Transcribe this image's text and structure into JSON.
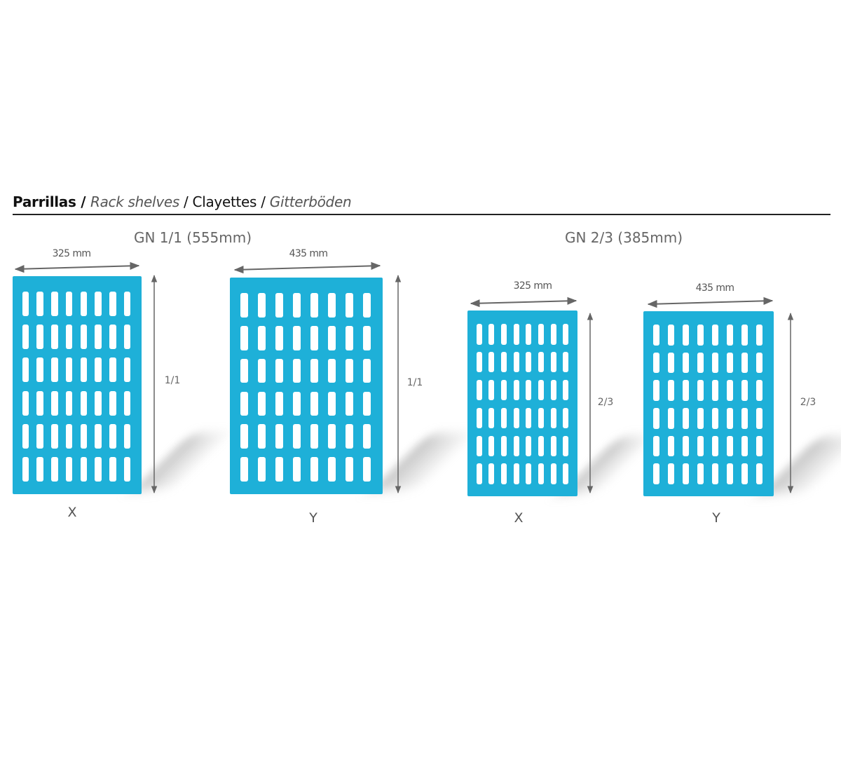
{
  "header": {
    "parts": [
      {
        "text": "Parrillas",
        "style": "bold"
      },
      {
        "text": " / ",
        "style": "bold"
      },
      {
        "text": "Rack shelves",
        "style": "italic"
      },
      {
        "text": " / ",
        "style": "normal"
      },
      {
        "text": "Clayettes",
        "style": "normal"
      },
      {
        "text": " / ",
        "style": "normal"
      },
      {
        "text": "Gitterböden",
        "style": "italic"
      }
    ]
  },
  "groups": [
    {
      "title": "GN 1/1 (555mm)"
    },
    {
      "title": "GN 2/3 (385mm)"
    }
  ],
  "racks": [
    {
      "width_label": "325 mm",
      "height_label": "1/1",
      "orientation": "X",
      "slot_columns": 8,
      "slot_rows": 6
    },
    {
      "width_label": "435 mm",
      "height_label": "1/1",
      "orientation": "Y",
      "slot_columns": 8,
      "slot_rows": 6
    },
    {
      "width_label": "325 mm",
      "height_label": "2/3",
      "orientation": "X",
      "slot_columns": 8,
      "slot_rows": 6
    },
    {
      "width_label": "435 mm",
      "height_label": "2/3",
      "orientation": "Y",
      "slot_columns": 8,
      "slot_rows": 6
    }
  ],
  "colors": {
    "rack": "#1eb0d8",
    "arrow": "#666666",
    "rule": "#222222"
  }
}
